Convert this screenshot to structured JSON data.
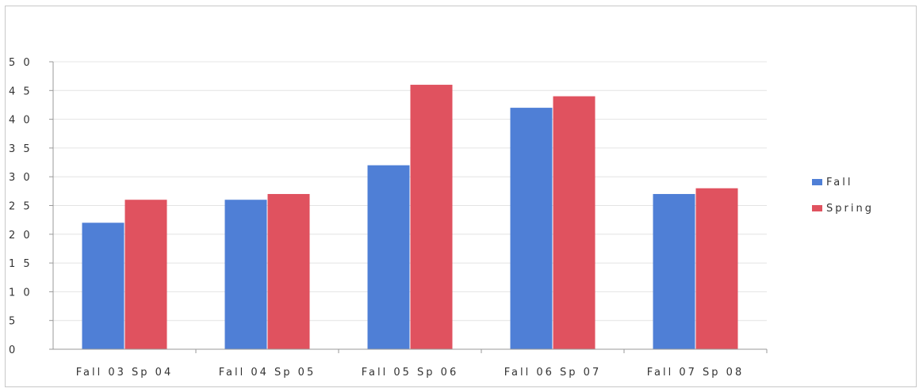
{
  "chart_data": {
    "type": "bar",
    "title": "",
    "xlabel": "",
    "ylabel": "",
    "categories": [
      "Fall 03 Sp 04",
      "Fall 04 Sp 05",
      "Fall 05 Sp 06",
      "Fall 06 Sp 07",
      "Fall 07 Sp 08"
    ],
    "series": [
      {
        "name": "Fall",
        "values": [
          22,
          26,
          32,
          42,
          27
        ],
        "color": "#4f7fd6"
      },
      {
        "name": "Spring",
        "values": [
          26,
          27,
          46,
          44,
          28
        ],
        "color": "#e0525f"
      }
    ],
    "ylim": [
      0,
      50
    ],
    "yticks": [
      0,
      5,
      10,
      15,
      20,
      25,
      30,
      35,
      40,
      45,
      50
    ],
    "ytick_labels": [
      "0",
      "5",
      "1 0",
      "1 5",
      "2 0",
      "2 5",
      "3 0",
      "3 5",
      "4 0",
      "4 5",
      "5 0"
    ],
    "grid": true,
    "legend_position": "right"
  }
}
